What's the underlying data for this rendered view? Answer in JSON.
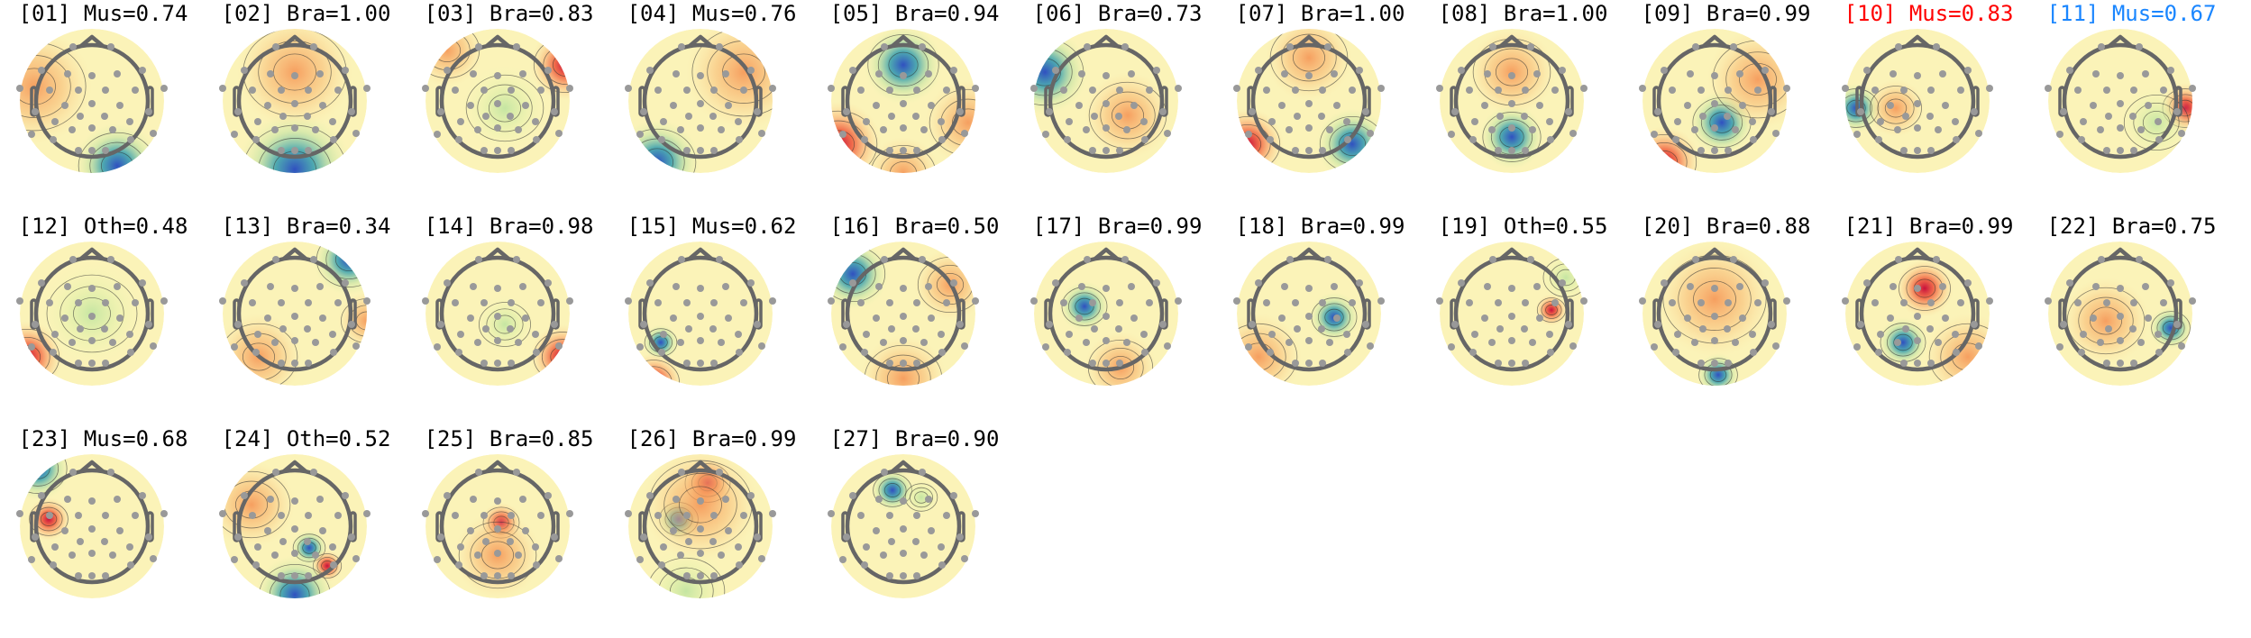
{
  "colors": {
    "default_label": "#000000",
    "highlight_red": "#ff0000",
    "highlight_blue": "#1a86ff",
    "head_outline": "#666666",
    "sensor": "#999999"
  },
  "panels": [
    {
      "label": "[01] Mus=0.74"
    },
    {
      "label": "[02] Bra=1.00"
    },
    {
      "label": "[03] Bra=0.83"
    },
    {
      "label": "[04] Mus=0.76"
    },
    {
      "label": "[05] Bra=0.94"
    },
    {
      "label": "[06] Bra=0.73"
    },
    {
      "label": "[07] Bra=1.00"
    },
    {
      "label": "[08] Bra=1.00"
    },
    {
      "label": "[09] Bra=0.99"
    },
    {
      "label": "[10] Mus=0.83",
      "color": "#ff0000"
    },
    {
      "label": "[11] Mus=0.67",
      "color": "#1a86ff"
    },
    {
      "label": "[12] Oth=0.48"
    },
    {
      "label": "[13] Bra=0.34"
    },
    {
      "label": "[14] Bra=0.98"
    },
    {
      "label": "[15] Mus=0.62"
    },
    {
      "label": "[16] Bra=0.50"
    },
    {
      "label": "[17] Bra=0.99"
    },
    {
      "label": "[18] Bra=0.99"
    },
    {
      "label": "[19] Oth=0.55"
    },
    {
      "label": "[20] Bra=0.88"
    },
    {
      "label": "[21] Bra=0.99"
    },
    {
      "label": "[22] Bra=0.75"
    },
    {
      "label": "[23] Mus=0.68"
    },
    {
      "label": "[24] Oth=0.52"
    },
    {
      "label": "[25] Bra=0.85"
    },
    {
      "label": "[26] Bra=0.99"
    },
    {
      "label": "[27] Bra=0.90"
    }
  ]
}
